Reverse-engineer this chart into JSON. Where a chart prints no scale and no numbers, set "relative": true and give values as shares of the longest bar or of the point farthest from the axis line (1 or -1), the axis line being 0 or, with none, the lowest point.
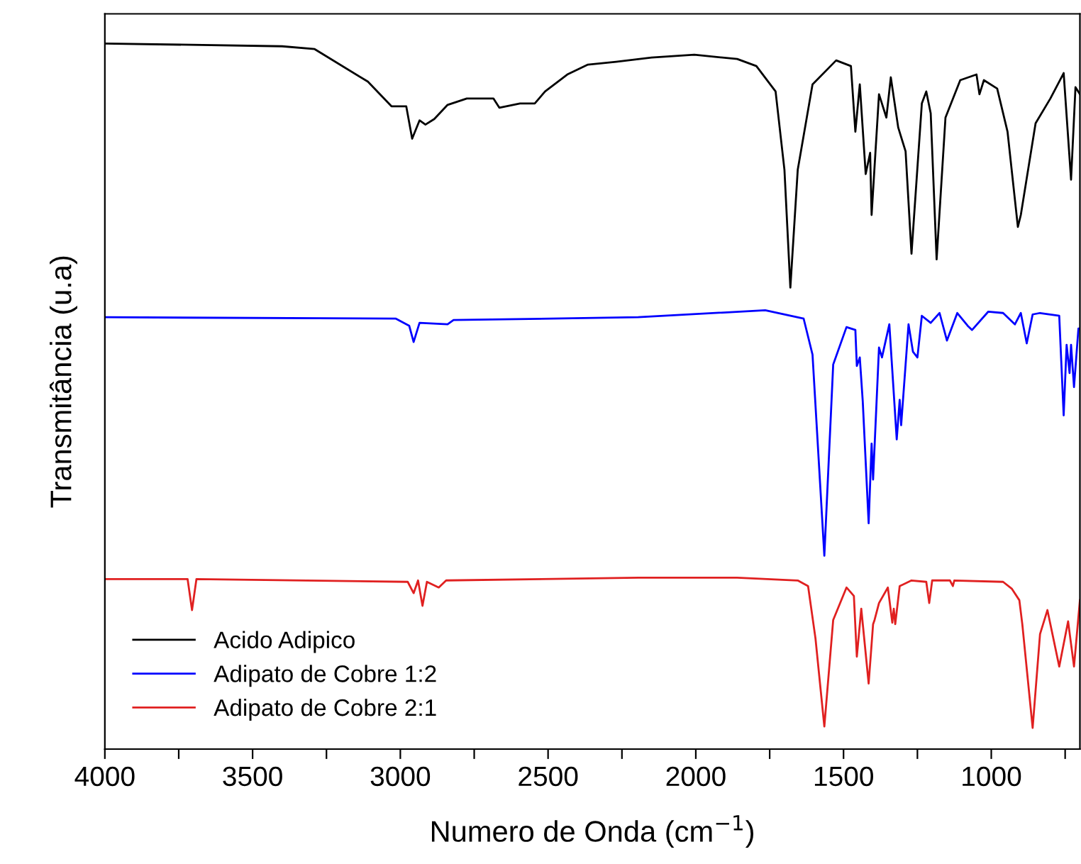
{
  "chart_data": {
    "type": "line",
    "relative": true,
    "xlabel": "Numero de Onda (cm$^{−1}$)",
    "ylabel": "Transmitância (u.a)",
    "xlim": [
      4000,
      700
    ],
    "xticks": [
      4000,
      {
        "value": 3750,
        "label": null
      },
      3500,
      {
        "value": 3250,
        "label": null
      },
      3000,
      {
        "value": 2750,
        "label": null
      },
      2500,
      {
        "value": 2250,
        "label": null
      },
      2000,
      {
        "value": 1750,
        "label": null
      },
      1500,
      {
        "value": 1250,
        "label": null
      },
      1000,
      {
        "value": 750,
        "label": null
      }
    ],
    "grid": false,
    "legend": "bottom left",
    "tick_labels": "x",
    "series": [
      {
        "name": "Acido Adipico",
        "color": "#000000",
        "x": [
          4000,
          3400,
          3290,
          3110,
          3030,
          2980,
          2960,
          2935,
          2915,
          2885,
          2840,
          2775,
          2685,
          2665,
          2595,
          2545,
          2510,
          2435,
          2365,
          2270,
          2150,
          2005,
          1860,
          1795,
          1730,
          1700,
          1680,
          1655,
          1605,
          1525,
          1475,
          1460,
          1445,
          1425,
          1410,
          1405,
          1380,
          1355,
          1340,
          1315,
          1290,
          1270,
          1235,
          1220,
          1205,
          1185,
          1155,
          1105,
          1050,
          1040,
          1025,
          980,
          945,
          910,
          900,
          850,
          800,
          755,
          730,
          715,
          700
        ],
        "values": [
          1.0,
          0.996,
          0.992,
          0.946,
          0.911,
          0.911,
          0.865,
          0.891,
          0.885,
          0.893,
          0.913,
          0.922,
          0.922,
          0.909,
          0.915,
          0.915,
          0.932,
          0.956,
          0.97,
          0.974,
          0.98,
          0.984,
          0.978,
          0.968,
          0.932,
          0.821,
          0.654,
          0.821,
          0.942,
          0.976,
          0.968,
          0.875,
          0.942,
          0.815,
          0.845,
          0.757,
          0.928,
          0.895,
          0.952,
          0.881,
          0.847,
          0.702,
          0.915,
          0.932,
          0.901,
          0.694,
          0.895,
          0.948,
          0.956,
          0.928,
          0.948,
          0.936,
          0.875,
          0.74,
          0.757,
          0.887,
          0.922,
          0.958,
          0.807,
          0.938,
          0.928
        ]
      },
      {
        "name": "Adipato de Cobre 1:2",
        "color": "#0000ff",
        "x": [
          4000,
          3015,
          2970,
          2955,
          2935,
          2840,
          2820,
          2195,
          1765,
          1635,
          1605,
          1565,
          1535,
          1490,
          1460,
          1455,
          1445,
          1435,
          1415,
          1405,
          1400,
          1380,
          1370,
          1345,
          1320,
          1310,
          1305,
          1280,
          1265,
          1250,
          1235,
          1205,
          1175,
          1150,
          1115,
          1080,
          1065,
          1010,
          960,
          920,
          900,
          880,
          860,
          835,
          770,
          755,
          745,
          735,
          730,
          720,
          705,
          700
        ],
        "values": [
          0.612,
          0.61,
          0.6,
          0.577,
          0.604,
          0.602,
          0.608,
          0.612,
          0.622,
          0.61,
          0.559,
          0.274,
          0.545,
          0.598,
          0.594,
          0.543,
          0.555,
          0.493,
          0.32,
          0.433,
          0.382,
          0.569,
          0.555,
          0.602,
          0.439,
          0.495,
          0.459,
          0.602,
          0.563,
          0.555,
          0.614,
          0.604,
          0.618,
          0.579,
          0.618,
          0.6,
          0.594,
          0.62,
          0.618,
          0.602,
          0.618,
          0.575,
          0.616,
          0.618,
          0.614,
          0.473,
          0.573,
          0.533,
          0.573,
          0.513,
          0.596,
          0.596
        ]
      },
      {
        "name": "Adipato de Cobre 2:1",
        "color": "#e02020",
        "x": [
          4000,
          3720,
          3705,
          3690,
          2975,
          2955,
          2940,
          2925,
          2910,
          2870,
          2845,
          2195,
          1860,
          1655,
          1620,
          1595,
          1565,
          1535,
          1490,
          1465,
          1455,
          1440,
          1415,
          1400,
          1395,
          1380,
          1350,
          1335,
          1330,
          1325,
          1310,
          1270,
          1220,
          1210,
          1200,
          1140,
          1130,
          1125,
          960,
          930,
          905,
          895,
          860,
          835,
          810,
          770,
          740,
          720,
          700
        ],
        "values": [
          0.241,
          0.241,
          0.197,
          0.241,
          0.237,
          0.221,
          0.239,
          0.203,
          0.237,
          0.229,
          0.239,
          0.243,
          0.243,
          0.239,
          0.231,
          0.157,
          0.032,
          0.183,
          0.229,
          0.217,
          0.131,
          0.199,
          0.093,
          0.177,
          0.183,
          0.207,
          0.229,
          0.179,
          0.199,
          0.177,
          0.231,
          0.239,
          0.237,
          0.207,
          0.239,
          0.239,
          0.231,
          0.239,
          0.237,
          0.227,
          0.211,
          0.177,
          0.03,
          0.163,
          0.197,
          0.117,
          0.181,
          0.117,
          0.211
        ]
      }
    ]
  }
}
